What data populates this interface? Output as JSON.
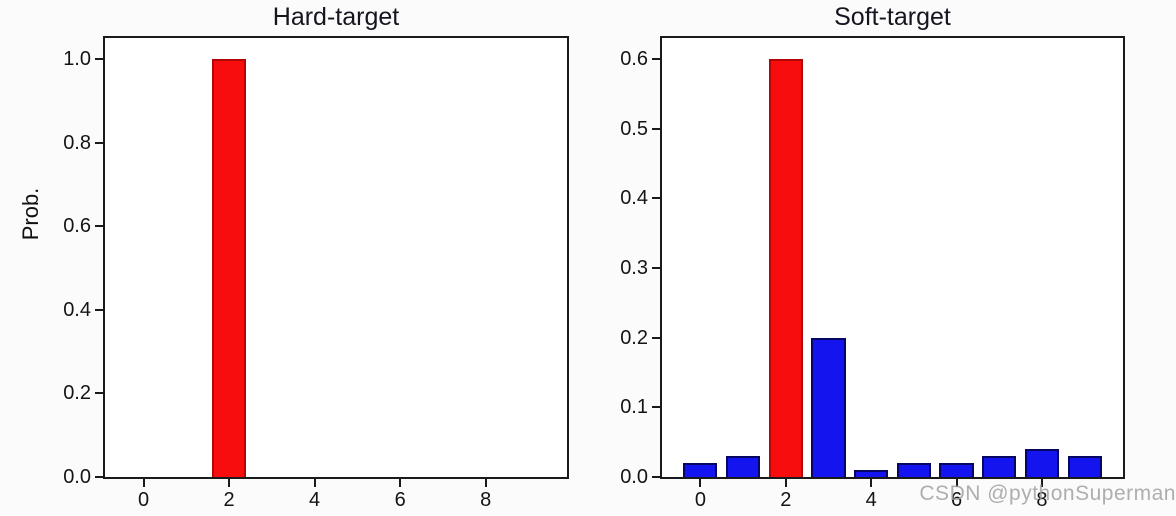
{
  "watermark": {
    "text": "CSDN @pythonSuperman",
    "color": "#b4b4b4"
  },
  "axis_color": "#1a1a1a",
  "chart_data": [
    {
      "type": "bar",
      "title": "Hard-target",
      "ylabel": "Prob.",
      "xlabel": "",
      "x": [
        0,
        1,
        2,
        3,
        4,
        5,
        6,
        7,
        8,
        9
      ],
      "values": [
        0,
        0,
        1.0,
        0,
        0,
        0,
        0,
        0,
        0,
        0
      ],
      "colors": [
        "#1414ef",
        "#1414ef",
        "#f70d0d",
        "#1414ef",
        "#1414ef",
        "#1414ef",
        "#1414ef",
        "#1414ef",
        "#1414ef",
        "#1414ef"
      ],
      "edges": [
        "#070763",
        "#070763",
        "#b30707",
        "#070763",
        "#070763",
        "#070763",
        "#070763",
        "#070763",
        "#070763",
        "#070763"
      ],
      "bar_width": 0.8,
      "xlim": [
        -0.9,
        9.9
      ],
      "ylim": [
        0,
        1.05
      ],
      "xticks": [
        0,
        2,
        4,
        6,
        8
      ],
      "xtick_labels": [
        "0",
        "2",
        "4",
        "6",
        "8"
      ],
      "yticks": [
        0.0,
        0.2,
        0.4,
        0.6,
        0.8,
        1.0
      ],
      "ytick_labels": [
        "0.0",
        "0.2",
        "0.4",
        "0.6",
        "0.8",
        "1.0"
      ],
      "grid": false,
      "legend_position": null
    },
    {
      "type": "bar",
      "title": "Soft-target",
      "ylabel": "",
      "xlabel": "",
      "x": [
        0,
        1,
        2,
        3,
        4,
        5,
        6,
        7,
        8,
        9
      ],
      "values": [
        0.02,
        0.03,
        0.6,
        0.2,
        0.01,
        0.02,
        0.02,
        0.03,
        0.04,
        0.03
      ],
      "colors": [
        "#1414ef",
        "#1414ef",
        "#f70d0d",
        "#1414ef",
        "#1414ef",
        "#1414ef",
        "#1414ef",
        "#1414ef",
        "#1414ef",
        "#1414ef"
      ],
      "edges": [
        "#070763",
        "#070763",
        "#b30707",
        "#070763",
        "#070763",
        "#070763",
        "#070763",
        "#070763",
        "#070763",
        "#070763"
      ],
      "bar_width": 0.8,
      "xlim": [
        -0.9,
        9.9
      ],
      "ylim": [
        0,
        0.63
      ],
      "xticks": [
        0,
        2,
        4,
        6,
        8
      ],
      "xtick_labels": [
        "0",
        "2",
        "4",
        "6",
        "8"
      ],
      "yticks": [
        0.0,
        0.1,
        0.2,
        0.3,
        0.4,
        0.5,
        0.6
      ],
      "ytick_labels": [
        "0.0",
        "0.1",
        "0.2",
        "0.3",
        "0.4",
        "0.5",
        "0.6"
      ],
      "grid": false,
      "legend_position": null
    }
  ]
}
